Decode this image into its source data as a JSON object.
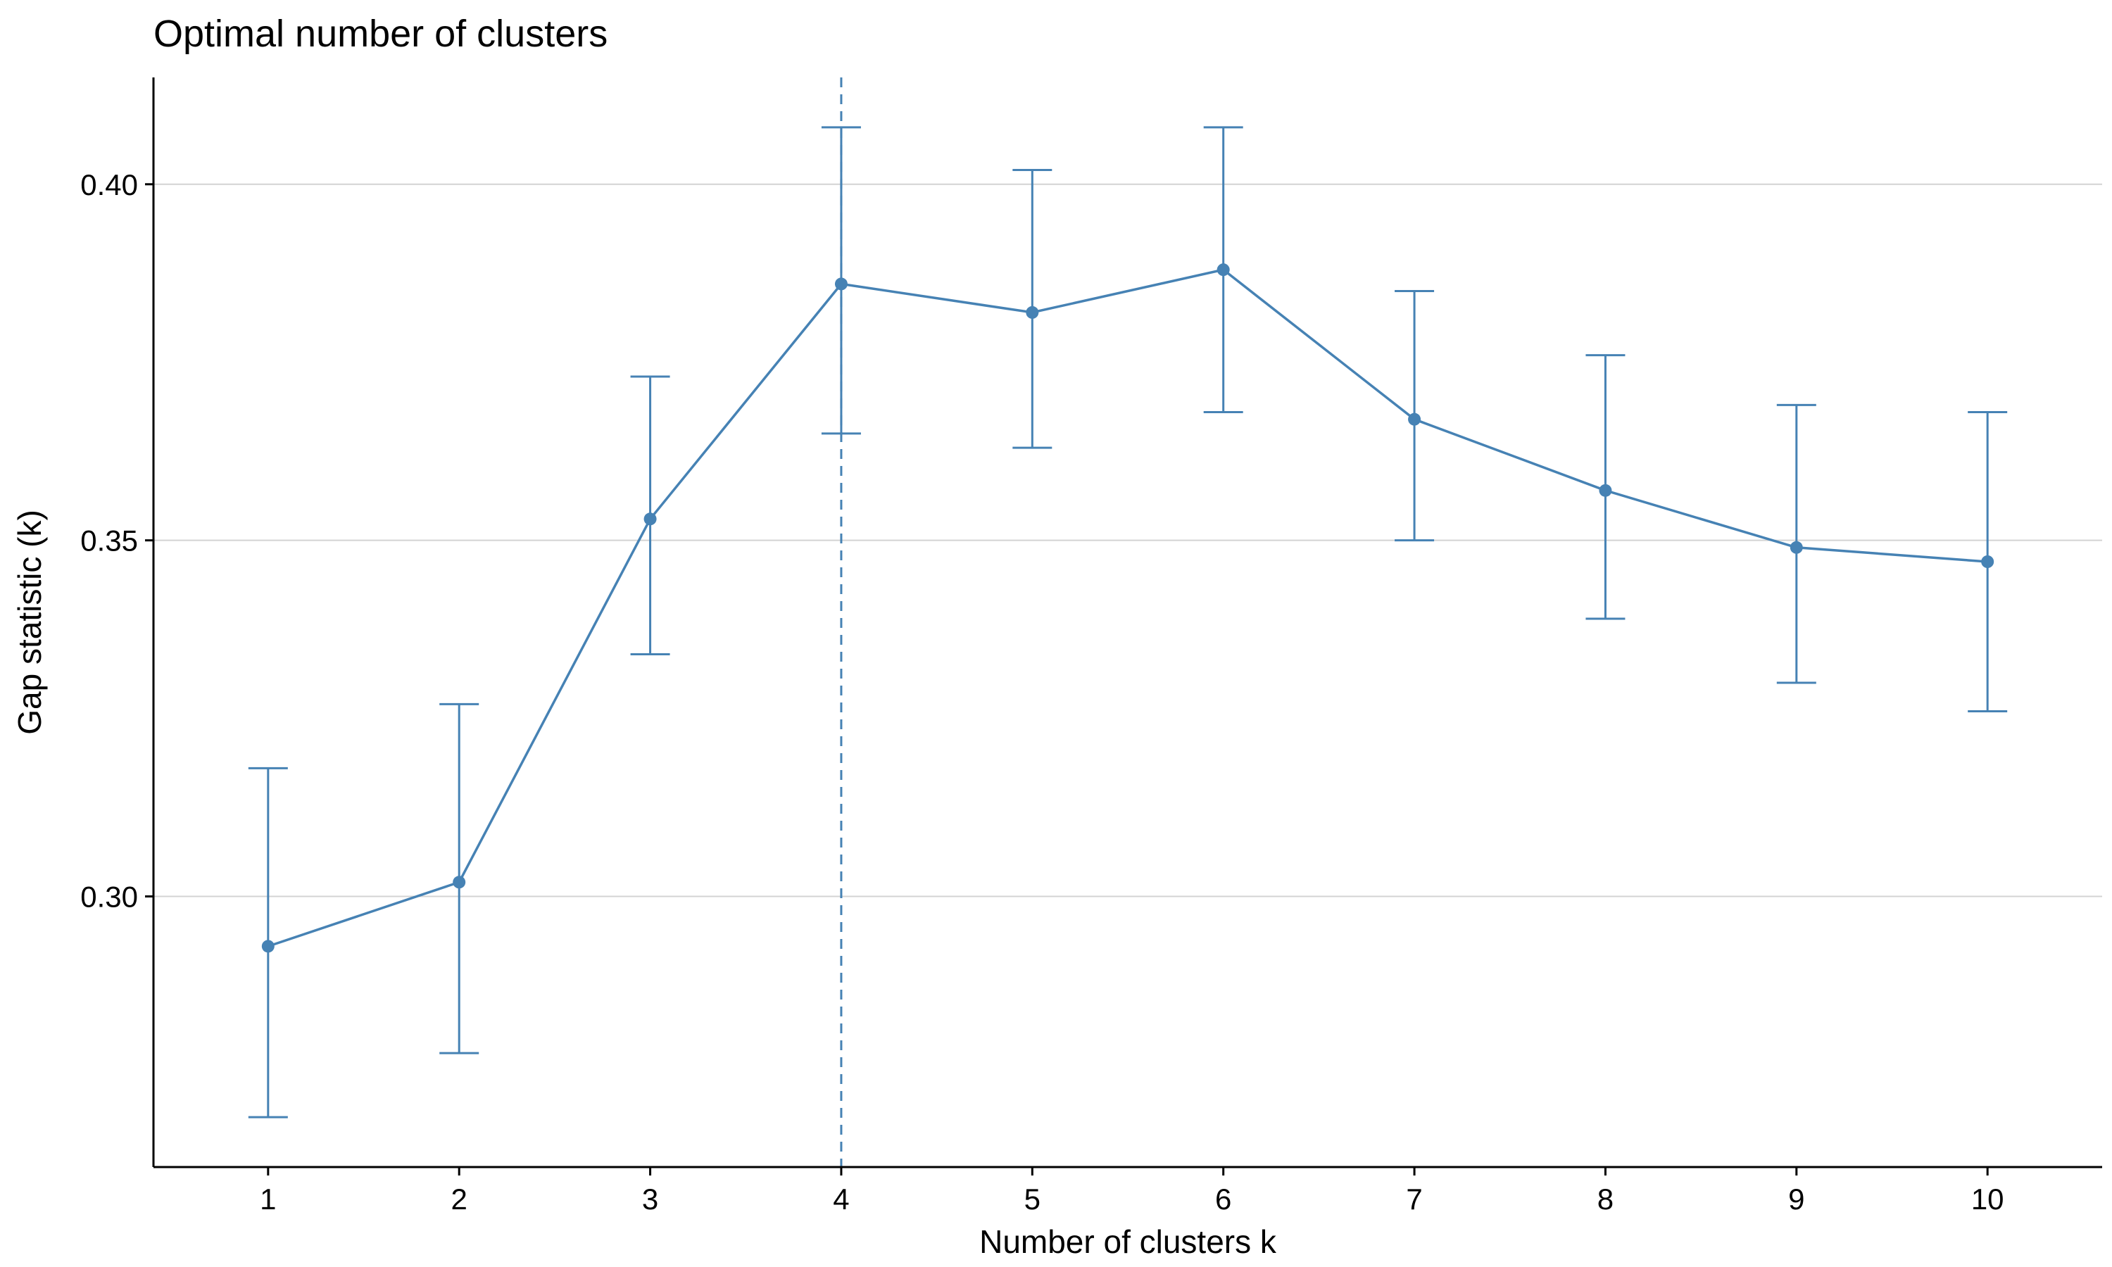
{
  "chart_data": {
    "type": "line",
    "title": "Optimal number of clusters",
    "xlabel": "Number of clusters k",
    "ylabel": "Gap statistic (k)",
    "categories": [
      "1",
      "2",
      "3",
      "4",
      "5",
      "6",
      "7",
      "8",
      "9",
      "10"
    ],
    "x": [
      1,
      2,
      3,
      4,
      5,
      6,
      7,
      8,
      9,
      10
    ],
    "series": [
      {
        "values": [
          0.293,
          0.302,
          0.353,
          0.386,
          0.382,
          0.388,
          0.367,
          0.357,
          0.349,
          0.347
        ],
        "error_lower": [
          0.269,
          0.278,
          0.334,
          0.365,
          0.363,
          0.368,
          0.35,
          0.339,
          0.33,
          0.326
        ],
        "error_upper": [
          0.318,
          0.327,
          0.373,
          0.408,
          0.402,
          0.408,
          0.385,
          0.376,
          0.369,
          0.368
        ]
      }
    ],
    "optimal_k": 4,
    "ylim": [
      0.262,
      0.415
    ],
    "xlim": [
      0.4,
      10.6
    ],
    "yticks": [
      0.3,
      0.35,
      0.4
    ],
    "ytick_labels": [
      "0.30",
      "0.35",
      "0.40"
    ],
    "grid": "horizontal major lines",
    "legend": "none",
    "colors": {
      "series": "#4682b4",
      "grid": "#d3d3d3",
      "axis": "#000000"
    }
  }
}
